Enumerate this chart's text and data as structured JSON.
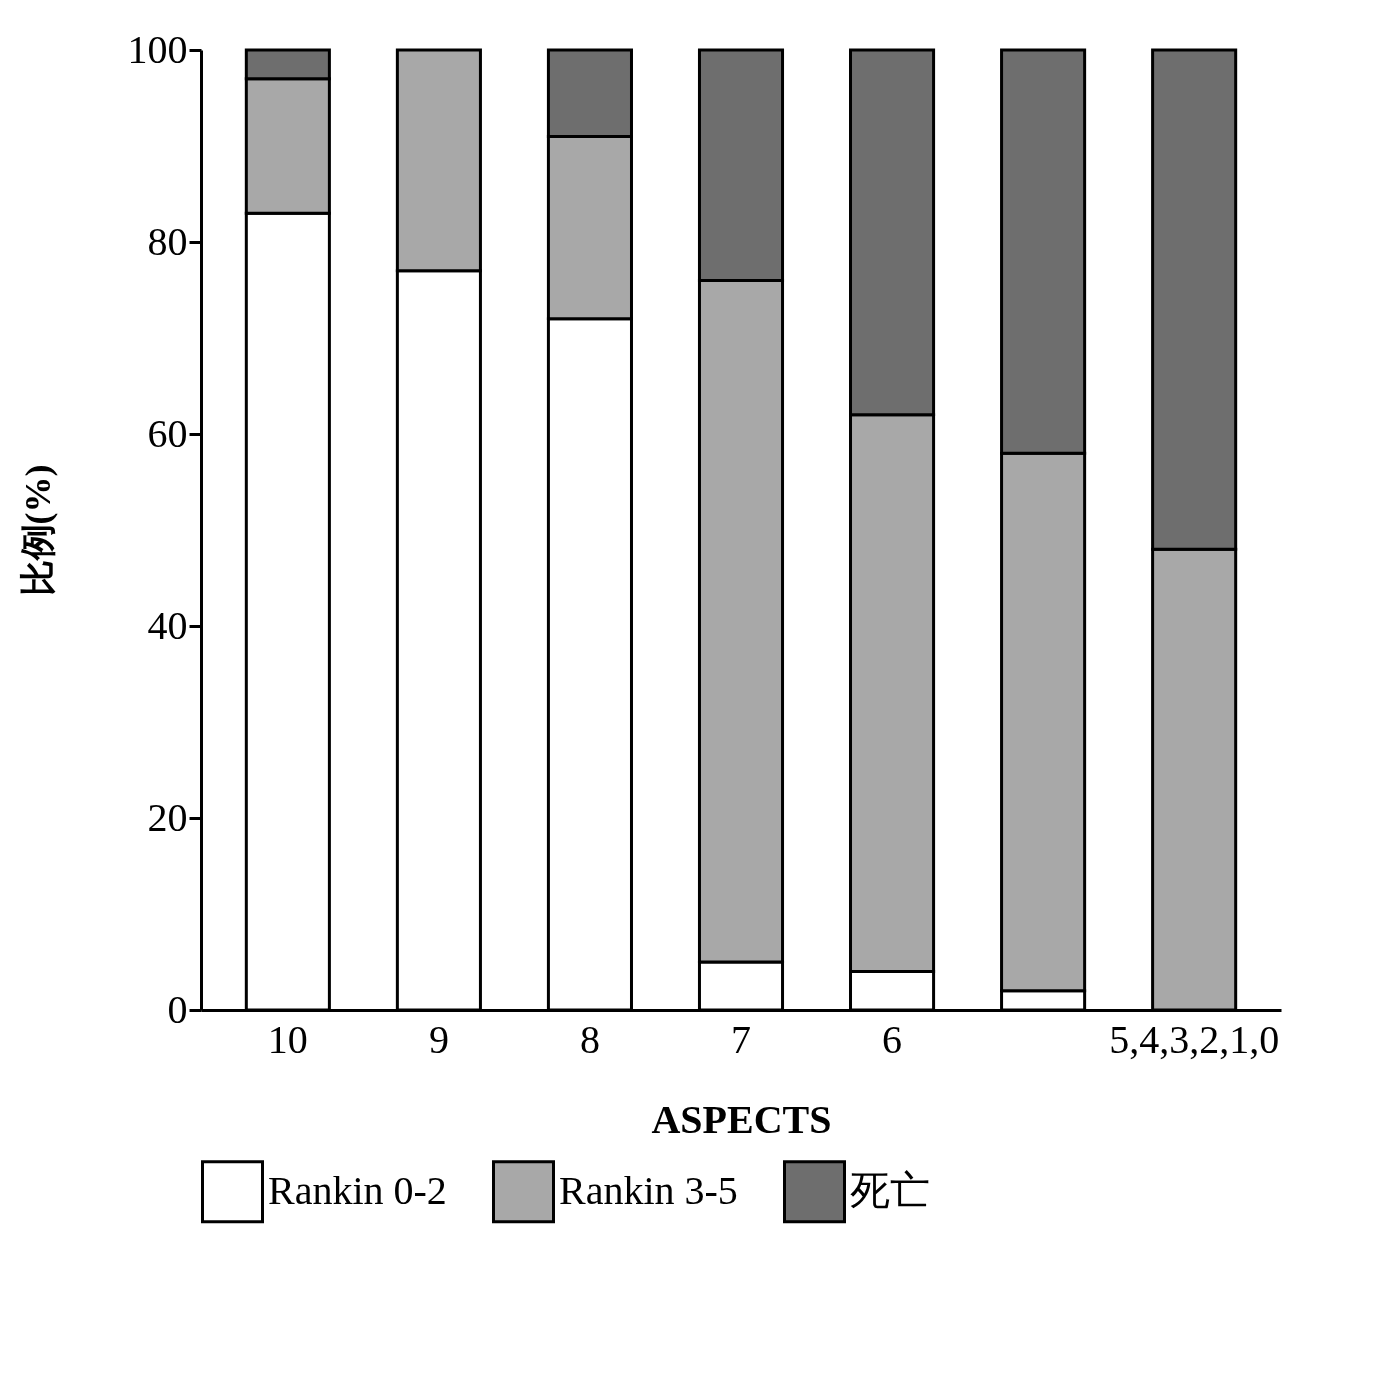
{
  "chart_data": {
    "type": "bar",
    "stacked": true,
    "xlabel": "ASPECTS",
    "ylabel": "比例(%)",
    "categories": [
      "10",
      "9",
      "8",
      "7",
      "6",
      null,
      "5,4,3,2,1,0"
    ],
    "series": [
      {
        "name": "Rankin 0-2",
        "color": "#ffffff",
        "values": [
          83,
          77,
          72,
          5,
          4,
          2,
          0
        ]
      },
      {
        "name": "Rankin 3-5",
        "color": "#a8a8a8",
        "values": [
          14,
          23,
          19,
          71,
          58,
          56,
          48
        ]
      },
      {
        "name": "死亡",
        "color": "#6e6e6e",
        "values": [
          3,
          0,
          9,
          24,
          38,
          42,
          52
        ]
      }
    ],
    "ylim": [
      0,
      100
    ],
    "yticks": [
      0,
      20,
      40,
      60,
      80,
      100
    ],
    "grid": false,
    "legend": "bottom"
  }
}
